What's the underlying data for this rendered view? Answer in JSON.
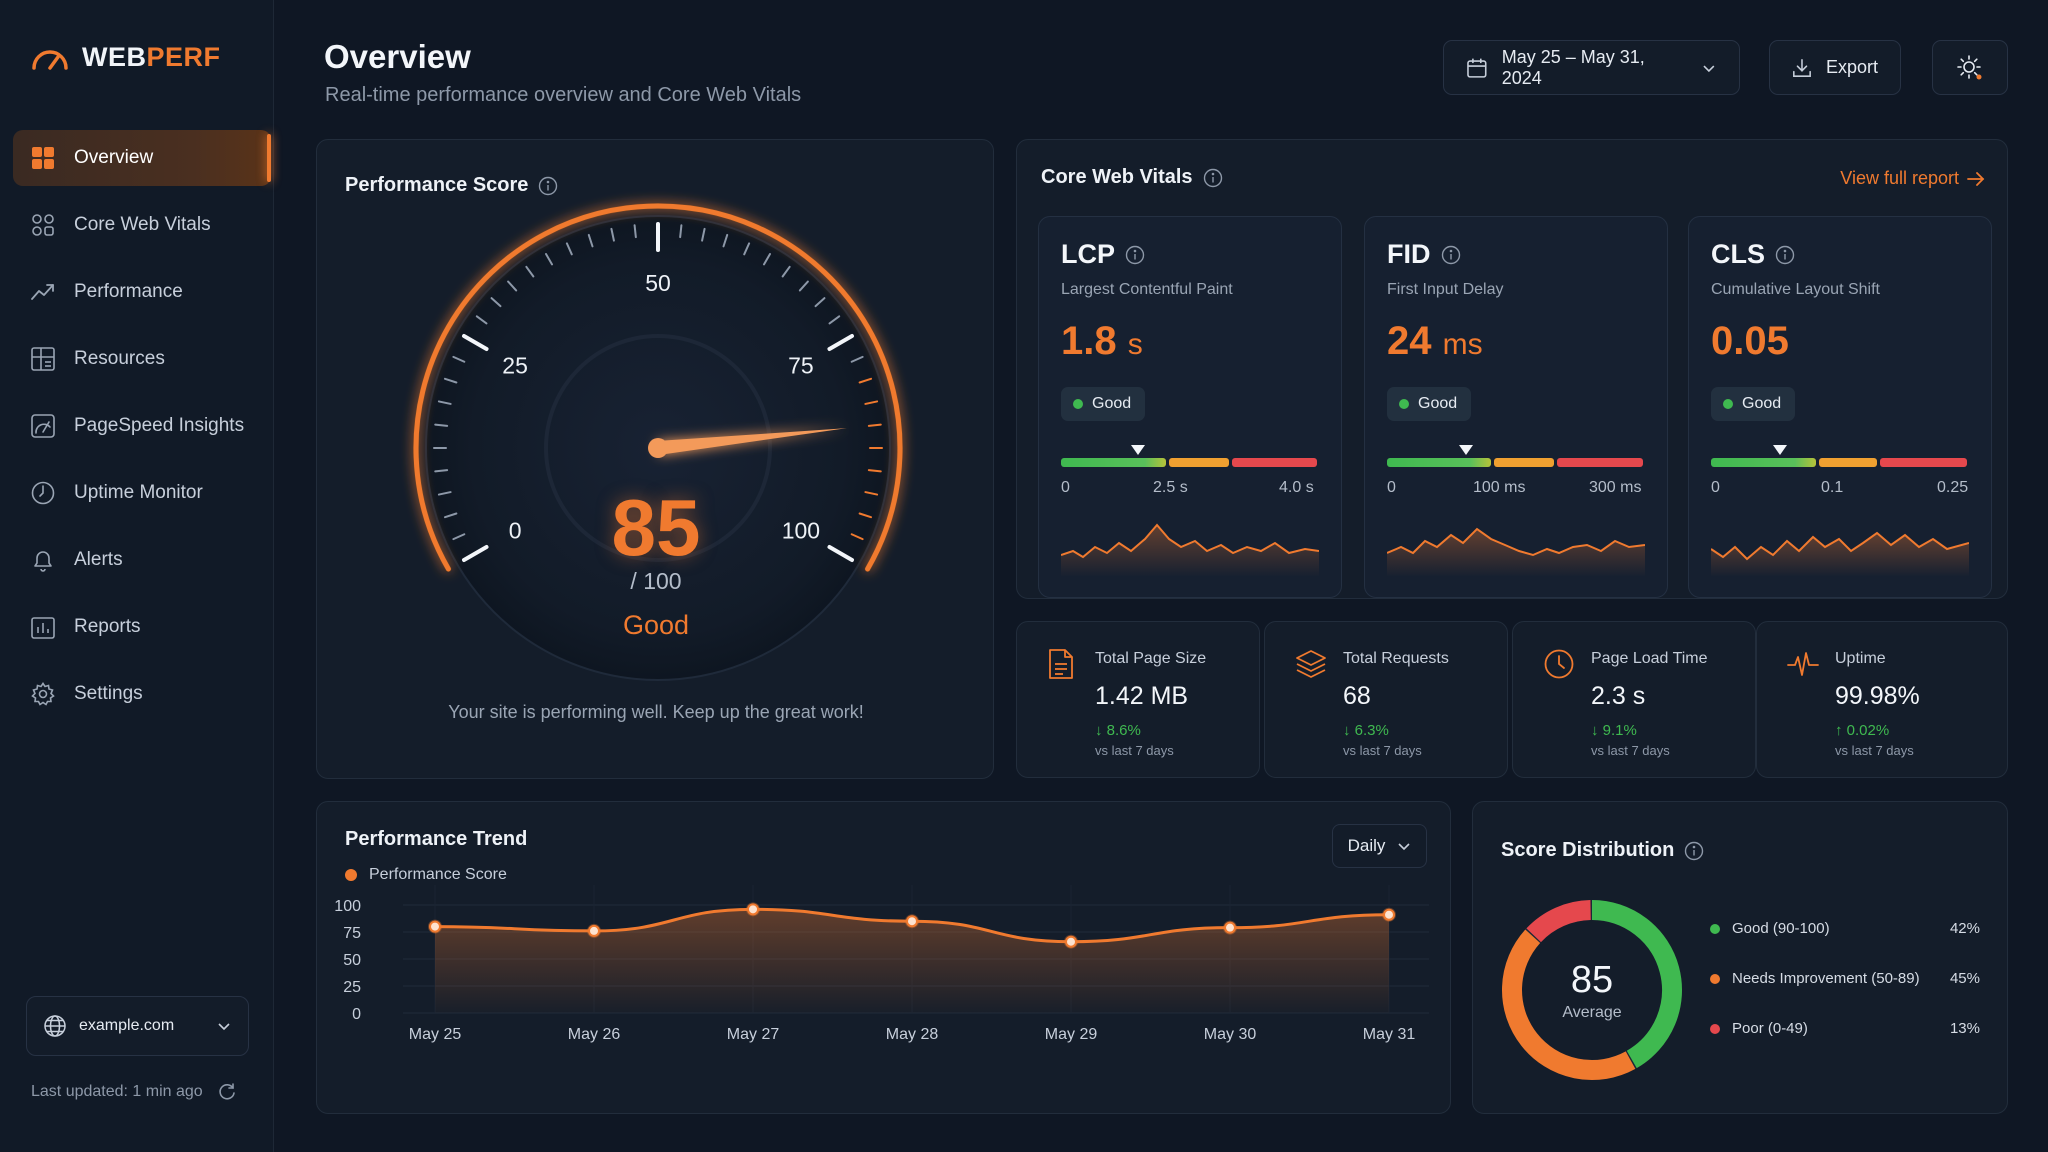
{
  "app": {
    "logo_a": "WEB",
    "logo_b": "PERF"
  },
  "sidebar": {
    "items": [
      {
        "label": "Overview",
        "icon": "grid-icon",
        "active": true
      },
      {
        "label": "Core Web Vitals",
        "icon": "vitals-icon"
      },
      {
        "label": "Performance",
        "icon": "trend-icon"
      },
      {
        "label": "Resources",
        "icon": "resources-icon"
      },
      {
        "label": "PageSpeed Insights",
        "icon": "pagespeed-icon"
      },
      {
        "label": "Uptime Monitor",
        "icon": "clock-icon"
      },
      {
        "label": "Alerts",
        "icon": "bell-icon"
      },
      {
        "label": "Reports",
        "icon": "report-icon"
      },
      {
        "label": "Settings",
        "icon": "gear-icon"
      }
    ],
    "site": "example.com",
    "last_updated": "Last updated: 1 min ago"
  },
  "header": {
    "title": "Overview",
    "subtitle": "Real-time performance overview and Core Web Vitals",
    "date_range": "May 25 – May 31, 2024",
    "export_label": "Export"
  },
  "score": {
    "title": "Performance Score",
    "value": "85",
    "value_num": 85,
    "max": "/ 100",
    "rating": "Good",
    "ticks": [
      "0",
      "25",
      "50",
      "75",
      "100"
    ],
    "message": "Your site is performing well. Keep up the great work!"
  },
  "vitals": {
    "title": "Core Web Vitals",
    "link": "View full report",
    "cards": [
      {
        "abbr": "LCP",
        "full": "Largest Contentful Paint",
        "value": "1.8",
        "unit": "s",
        "badge": "Good",
        "ticks": [
          "0",
          "2.5 s",
          "4.0 s"
        ],
        "marker": 0.3
      },
      {
        "abbr": "FID",
        "full": "First Input Delay",
        "value": "24",
        "unit": "ms",
        "badge": "Good",
        "ticks": [
          "0",
          "100 ms",
          "300 ms"
        ],
        "marker": 0.31
      },
      {
        "abbr": "CLS",
        "full": "Cumulative Layout Shift",
        "value": "0.05",
        "unit": "",
        "badge": "Good",
        "ticks": [
          "0",
          "0.1",
          "0.25"
        ],
        "marker": 0.27
      }
    ]
  },
  "stats": [
    {
      "label": "Total Page Size",
      "value": "1.42 MB",
      "change": "↓ 8.6%",
      "compare": "vs last 7 days",
      "icon": "file-icon"
    },
    {
      "label": "Total Requests",
      "value": "68",
      "change": "↓ 6.3%",
      "compare": "vs last 7 days",
      "icon": "layers-icon"
    },
    {
      "label": "Page Load Time",
      "value": "2.3 s",
      "change": "↓ 9.1%",
      "compare": "vs last 7 days",
      "icon": "clock-icon"
    },
    {
      "label": "Uptime",
      "value": "99.98%",
      "change": "↑ 0.02%",
      "compare": "vs last 7 days",
      "icon": "pulse-icon"
    }
  ],
  "trend": {
    "title": "Performance Trend",
    "period": "Daily",
    "legend": "Performance Score"
  },
  "chart_data": {
    "type": "area",
    "title": "Performance Trend",
    "categories": [
      "May 25",
      "May 26",
      "May 27",
      "May 28",
      "May 29",
      "May 30",
      "May 31"
    ],
    "series": [
      {
        "name": "Performance Score",
        "values": [
          80,
          76,
          96,
          85,
          66,
          79,
          91
        ]
      }
    ],
    "ylim": [
      0,
      100
    ],
    "yticks": [
      "0",
      "25",
      "50",
      "75",
      "100"
    ],
    "color": "#f07a2f"
  },
  "distribution": {
    "title": "Score Distribution",
    "center_value": "85",
    "center_label": "Average",
    "items": [
      {
        "label": "Good (90-100)",
        "pct": "42%",
        "value": 42,
        "color": "#3fb950"
      },
      {
        "label": "Needs Improvement (50-89)",
        "pct": "45%",
        "value": 45,
        "color": "#f07a2f"
      },
      {
        "label": "Poor (0-49)",
        "pct": "13%",
        "value": 13,
        "color": "#e5484d"
      }
    ]
  },
  "colors": {
    "accent": "#f07a2f",
    "good": "#3fb950",
    "warn": "#f0a030",
    "poor": "#e5484d",
    "bg": "#0f1724"
  }
}
